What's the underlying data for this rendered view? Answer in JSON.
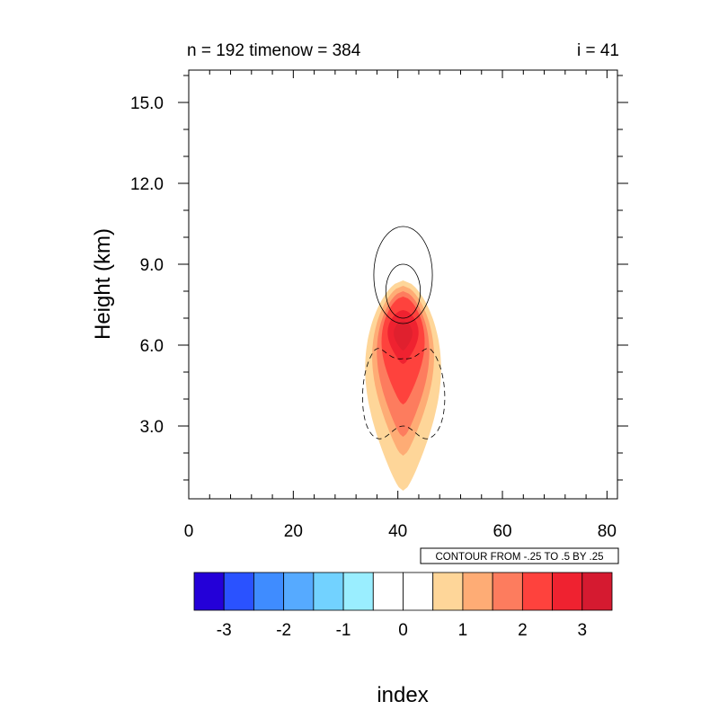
{
  "chart_data": {
    "type": "contour",
    "title_left": "n = 192 timenow = 384",
    "title_right": "i = 41",
    "xlabel": "index",
    "ylabel": "Height (km)",
    "xlim": [
      0,
      82
    ],
    "ylim": [
      0.3,
      16.2
    ],
    "x_ticks": [
      "0",
      "20",
      "40",
      "60",
      "80"
    ],
    "y_ticks": [
      "3.0",
      "6.0",
      "9.0",
      "12.0",
      "15.0"
    ],
    "contour_info": "CONTOUR FROM -.25 TO .5 BY .25",
    "colorbar": {
      "labels": [
        "-3",
        "-2",
        "-1",
        "0",
        "1",
        "2",
        "3"
      ],
      "colors": [
        "#2400d8",
        "#2a52ff",
        "#3f8cff",
        "#56aaff",
        "#72d2ff",
        "#9aeeff",
        "#ffffff",
        "#ffffff",
        "#fed699",
        "#feac75",
        "#fd7c5e",
        "#fe423d",
        "#ef2230",
        "#d51a30"
      ]
    },
    "filled_field": {
      "center_x": 41,
      "levels": [
        {
          "value": 0.5,
          "color": "#fed699",
          "top": 8.4,
          "bottom": 0.6,
          "halfwidth": 8.1
        },
        {
          "value": 1.0,
          "color": "#feac75",
          "top": 8.2,
          "bottom": 1.9,
          "halfwidth": 6.6
        },
        {
          "value": 1.5,
          "color": "#fd7c5e",
          "top": 8.0,
          "bottom": 2.6,
          "halfwidth": 5.6
        },
        {
          "value": 2.0,
          "color": "#fe423d",
          "top": 7.8,
          "bottom": 3.8,
          "halfwidth": 4.6
        },
        {
          "value": 2.5,
          "color": "#ef2230",
          "top": 7.3,
          "bottom": 5.3,
          "halfwidth": 3.3
        },
        {
          "value": 3.0,
          "color": "#e0202e",
          "top": 6.9,
          "bottom": 5.8,
          "halfwidth": 2.0
        }
      ]
    },
    "line_contours": [
      {
        "value": 0.25,
        "style": "solid",
        "center": [
          41,
          8.6
        ],
        "rx": 5.6,
        "ry_up": 1.8,
        "ry_down": 1.8
      },
      {
        "value": 0.5,
        "style": "solid",
        "center": [
          41,
          8.0
        ],
        "rx": 3.3,
        "ry_up": 1.0,
        "ry_down": 1.0
      },
      {
        "value": -0.25,
        "style": "dashed",
        "x": [
          41,
          37,
          35,
          33.3,
          33.6,
          35,
          36.5,
          38.5,
          41,
          43.5,
          45.5,
          47.5,
          49.2,
          49.5,
          47.5,
          45.5,
          43.5,
          41
        ]
      }
    ]
  }
}
